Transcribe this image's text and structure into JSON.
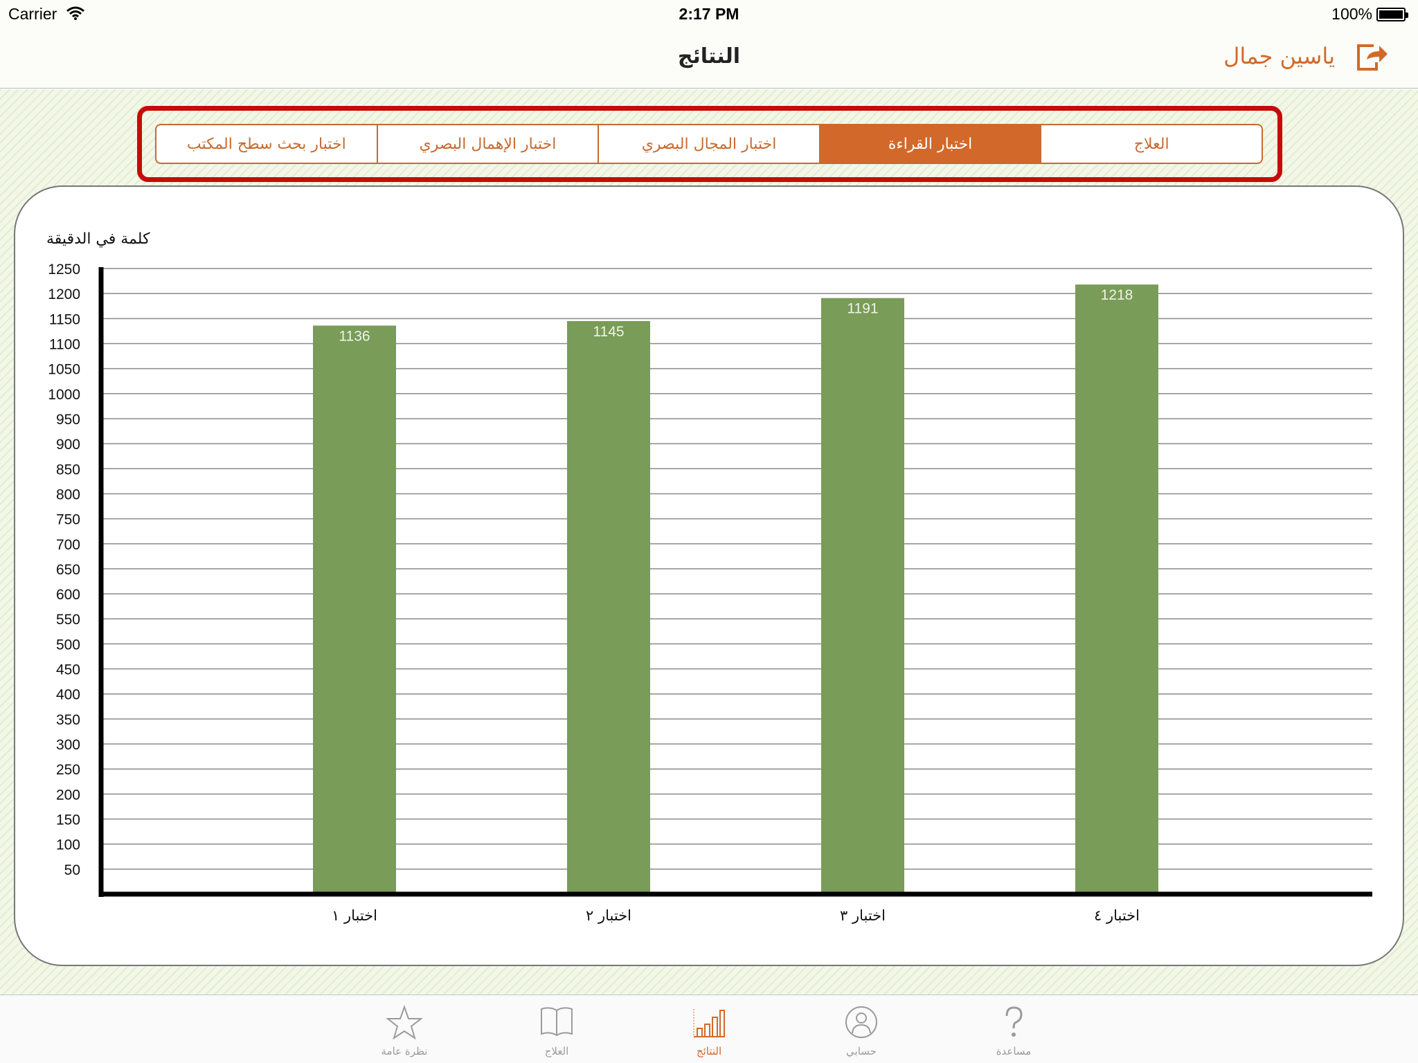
{
  "status_bar": {
    "carrier": "Carrier",
    "time": "2:17 PM",
    "battery": "100%"
  },
  "nav": {
    "title": "النتائج",
    "user_name": "ياسين جمال",
    "logout_icon": "logout-arrow-icon"
  },
  "segments": [
    {
      "label": "العلاج",
      "selected": false
    },
    {
      "label": "اختبار القراءة",
      "selected": true
    },
    {
      "label": "اختبار المجال البصري",
      "selected": false
    },
    {
      "label": "اختبار الإهمال البصري",
      "selected": false
    },
    {
      "label": "اختبار بحث سطح المكتب",
      "selected": false
    }
  ],
  "chart_data": {
    "type": "bar",
    "ylabel": "كلمة في الدقيقة",
    "ylim": [
      0,
      1250
    ],
    "yticks": [
      50,
      100,
      150,
      200,
      250,
      300,
      350,
      400,
      450,
      500,
      550,
      600,
      650,
      700,
      750,
      800,
      850,
      900,
      950,
      1000,
      1050,
      1100,
      1150,
      1200,
      1250
    ],
    "categories": [
      "اختبار ١",
      "اختبار ٢",
      "اختبار ٣",
      "اختبار ٤"
    ],
    "values": [
      1136,
      1145,
      1191,
      1218
    ],
    "bar_color": "#799c58",
    "grid": true
  },
  "tabs": [
    {
      "label": "نظرة عامة",
      "icon": "star-icon",
      "active": false
    },
    {
      "label": "العلاج",
      "icon": "book-icon",
      "active": false
    },
    {
      "label": "النتائج",
      "icon": "bar-chart-icon",
      "active": true
    },
    {
      "label": "حسابي",
      "icon": "person-icon",
      "active": false
    },
    {
      "label": "مساعدة",
      "icon": "question-icon",
      "active": false
    }
  ],
  "colors": {
    "accent": "#d2692a",
    "highlight": "#c80a0a",
    "bar": "#799c58"
  }
}
